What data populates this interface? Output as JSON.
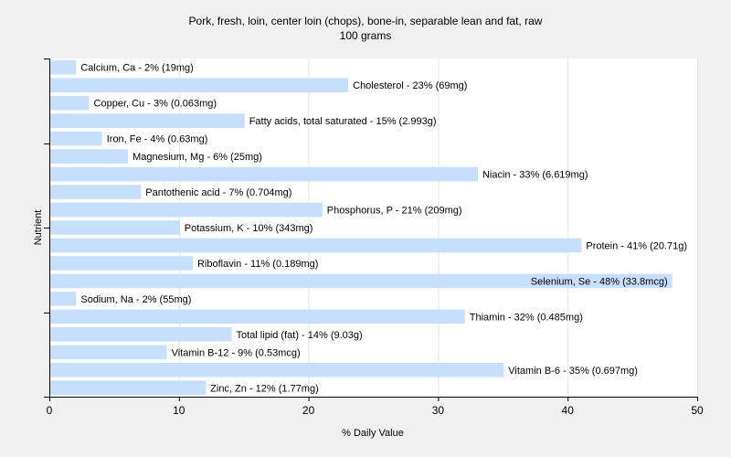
{
  "chart_data": {
    "type": "bar",
    "orientation": "horizontal",
    "title": "Pork, fresh, loin, center loin (chops), bone-in, separable lean and fat, raw",
    "subtitle": "100 grams",
    "xlabel": "% Daily Value",
    "ylabel": "Nutrient",
    "xlim": [
      0,
      50
    ],
    "xticks": [
      0,
      10,
      20,
      30,
      40,
      50
    ],
    "grid": true,
    "bar_color": "#c6dffc",
    "bars": [
      {
        "label": "Calcium, Ca - 2% (19mg)",
        "value": 2
      },
      {
        "label": "Cholesterol - 23% (69mg)",
        "value": 23
      },
      {
        "label": "Copper, Cu - 3% (0.063mg)",
        "value": 3
      },
      {
        "label": "Fatty acids, total saturated - 15% (2.993g)",
        "value": 15
      },
      {
        "label": "Iron, Fe - 4% (0.63mg)",
        "value": 4
      },
      {
        "label": "Magnesium, Mg - 6% (25mg)",
        "value": 6
      },
      {
        "label": "Niacin - 33% (6.619mg)",
        "value": 33
      },
      {
        "label": "Pantothenic acid - 7% (0.704mg)",
        "value": 7
      },
      {
        "label": "Phosphorus, P - 21% (209mg)",
        "value": 21
      },
      {
        "label": "Potassium, K - 10% (343mg)",
        "value": 10
      },
      {
        "label": "Protein - 41% (20.71g)",
        "value": 41
      },
      {
        "label": "Riboflavin - 11% (0.189mg)",
        "value": 11
      },
      {
        "label": "Selenium, Se - 48% (33.8mcg)",
        "value": 48
      },
      {
        "label": "Sodium, Na - 2% (55mg)",
        "value": 2
      },
      {
        "label": "Thiamin - 32% (0.485mg)",
        "value": 32
      },
      {
        "label": "Total lipid (fat) - 14% (9.03g)",
        "value": 14
      },
      {
        "label": "Vitamin B-12 - 9% (0.53mcg)",
        "value": 9
      },
      {
        "label": "Vitamin B-6 - 35% (0.697mg)",
        "value": 35
      },
      {
        "label": "Zinc, Zn - 12% (1.77mg)",
        "value": 12
      }
    ]
  }
}
